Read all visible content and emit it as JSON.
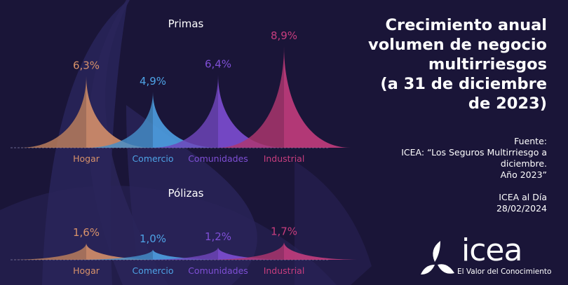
{
  "header": {
    "title_lines": [
      "Crecimiento anual",
      "volumen de negocio",
      "multirriesgos",
      "(a 31 de diciembre",
      "de 2023)"
    ]
  },
  "source": {
    "lines": [
      "Fuente:",
      "ICEA: “Los Seguros Multirriesgo a",
      "diciembre.",
      "Año 2023”",
      "",
      "ICEA al Día",
      "28/02/2024"
    ]
  },
  "logo": {
    "name": "icea",
    "tagline": "El Valor del Conocimiento"
  },
  "colors": {
    "background": "#1a1538",
    "Hogar": "#d8926a",
    "Comercio": "#4ea3e6",
    "Comunidades": "#7f4fd6",
    "Industrial": "#c73d7e"
  },
  "chart_data": [
    {
      "type": "area",
      "title": "Primas",
      "categories": [
        "Hogar",
        "Comercio",
        "Comunidades",
        "Industrial"
      ],
      "values": [
        6.3,
        4.9,
        6.4,
        8.9
      ],
      "labels": [
        "6,3%",
        "4,9%",
        "6,4%",
        "8,9%"
      ],
      "unit": "%"
    },
    {
      "type": "area",
      "title": "Pólizas",
      "categories": [
        "Hogar",
        "Comercio",
        "Comunidades",
        "Industrial"
      ],
      "values": [
        1.6,
        1.0,
        1.2,
        1.7
      ],
      "labels": [
        "1,6%",
        "1,0%",
        "1,2%",
        "1,7%"
      ],
      "unit": "%"
    }
  ]
}
